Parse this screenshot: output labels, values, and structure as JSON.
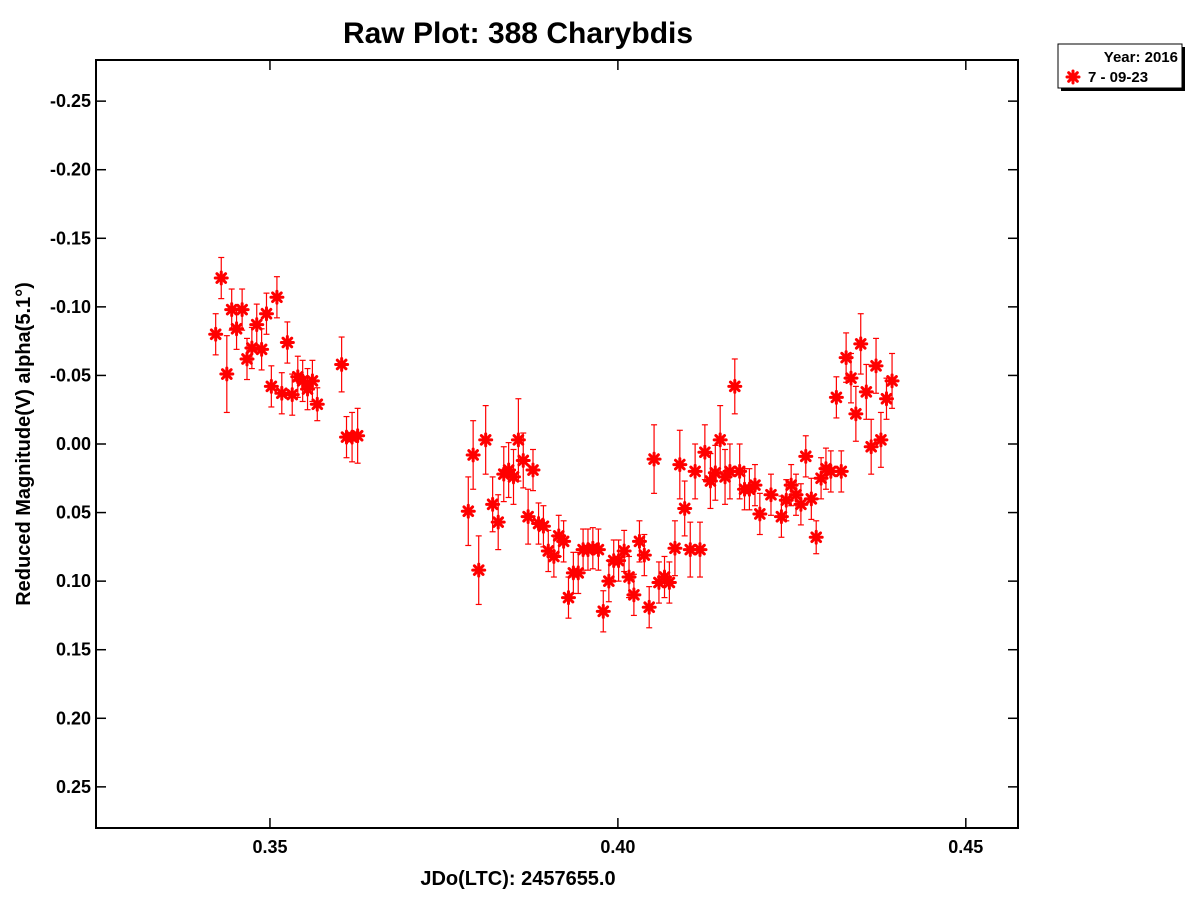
{
  "chart_data": {
    "type": "scatter",
    "title": "Raw Plot: 388 Charybdis",
    "xlabel": "JDo(LTC): 2457655.0",
    "ylabel": "Reduced Magnitude(V) alpha(5.1°)",
    "xlim": [
      0.325,
      0.4575
    ],
    "ylim": [
      -0.28,
      0.28
    ],
    "y_inverted": true,
    "x_ticks": [
      0.35,
      0.4,
      0.45
    ],
    "x_tick_labels": [
      "0.35",
      "0.40",
      "0.45"
    ],
    "y_ticks": [
      -0.25,
      -0.2,
      -0.15,
      -0.1,
      -0.05,
      0.0,
      0.05,
      0.1,
      0.15,
      0.2,
      0.25
    ],
    "y_tick_labels": [
      "-0.25",
      "-0.20",
      "-0.15",
      "-0.10",
      "-0.05",
      "0.00",
      "0.05",
      "0.10",
      "0.15",
      "0.20",
      "0.25"
    ],
    "grid": false,
    "legend": {
      "position": "outside-top-right",
      "header": "Year: 2016",
      "entries": [
        {
          "label": "7 - 09-23",
          "color": "#ff0000",
          "marker": "asterisk"
        }
      ]
    },
    "series": [
      {
        "name": "7 - 09-23",
        "color": "#ff0000",
        "points": [
          {
            "x": 0.3422,
            "y": -0.08,
            "err": 0.015
          },
          {
            "x": 0.343,
            "y": -0.121,
            "err": 0.015
          },
          {
            "x": 0.3438,
            "y": -0.051,
            "err": 0.028
          },
          {
            "x": 0.3445,
            "y": -0.098,
            "err": 0.015
          },
          {
            "x": 0.3452,
            "y": -0.084,
            "err": 0.015
          },
          {
            "x": 0.346,
            "y": -0.098,
            "err": 0.015
          },
          {
            "x": 0.3467,
            "y": -0.062,
            "err": 0.015
          },
          {
            "x": 0.3474,
            "y": -0.07,
            "err": 0.015
          },
          {
            "x": 0.3481,
            "y": -0.087,
            "err": 0.015
          },
          {
            "x": 0.3488,
            "y": -0.069,
            "err": 0.015
          },
          {
            "x": 0.3495,
            "y": -0.095,
            "err": 0.015
          },
          {
            "x": 0.3502,
            "y": -0.042,
            "err": 0.015
          },
          {
            "x": 0.351,
            "y": -0.107,
            "err": 0.015
          },
          {
            "x": 0.3517,
            "y": -0.037,
            "err": 0.015
          },
          {
            "x": 0.3525,
            "y": -0.074,
            "err": 0.015
          },
          {
            "x": 0.3532,
            "y": -0.036,
            "err": 0.015
          },
          {
            "x": 0.354,
            "y": -0.049,
            "err": 0.015
          },
          {
            "x": 0.3547,
            "y": -0.046,
            "err": 0.015
          },
          {
            "x": 0.3554,
            "y": -0.04,
            "err": 0.015
          },
          {
            "x": 0.3561,
            "y": -0.046,
            "err": 0.015
          },
          {
            "x": 0.3568,
            "y": -0.029,
            "err": 0.012
          },
          {
            "x": 0.3603,
            "y": -0.058,
            "err": 0.02
          },
          {
            "x": 0.361,
            "y": -0.005,
            "err": 0.015
          },
          {
            "x": 0.3618,
            "y": -0.005,
            "err": 0.018
          },
          {
            "x": 0.3626,
            "y": -0.006,
            "err": 0.02
          },
          {
            "x": 0.3785,
            "y": 0.049,
            "err": 0.025
          },
          {
            "x": 0.3792,
            "y": 0.008,
            "err": 0.025
          },
          {
            "x": 0.38,
            "y": 0.092,
            "err": 0.025
          },
          {
            "x": 0.381,
            "y": -0.003,
            "err": 0.025
          },
          {
            "x": 0.382,
            "y": 0.044,
            "err": 0.02
          },
          {
            "x": 0.3828,
            "y": 0.057,
            "err": 0.02
          },
          {
            "x": 0.3836,
            "y": 0.022,
            "err": 0.02
          },
          {
            "x": 0.3843,
            "y": 0.019,
            "err": 0.02
          },
          {
            "x": 0.385,
            "y": 0.024,
            "err": 0.02
          },
          {
            "x": 0.3857,
            "y": -0.003,
            "err": 0.03
          },
          {
            "x": 0.3864,
            "y": 0.012,
            "err": 0.02
          },
          {
            "x": 0.3871,
            "y": 0.053,
            "err": 0.02
          },
          {
            "x": 0.3878,
            "y": 0.019,
            "err": 0.015
          },
          {
            "x": 0.3886,
            "y": 0.058,
            "err": 0.015
          },
          {
            "x": 0.3893,
            "y": 0.06,
            "err": 0.015
          },
          {
            "x": 0.39,
            "y": 0.078,
            "err": 0.015
          },
          {
            "x": 0.3908,
            "y": 0.082,
            "err": 0.015
          },
          {
            "x": 0.3915,
            "y": 0.067,
            "err": 0.015
          },
          {
            "x": 0.3922,
            "y": 0.071,
            "err": 0.015
          },
          {
            "x": 0.3929,
            "y": 0.112,
            "err": 0.015
          },
          {
            "x": 0.3936,
            "y": 0.094,
            "err": 0.015
          },
          {
            "x": 0.3943,
            "y": 0.094,
            "err": 0.015
          },
          {
            "x": 0.395,
            "y": 0.077,
            "err": 0.015
          },
          {
            "x": 0.3957,
            "y": 0.077,
            "err": 0.015
          },
          {
            "x": 0.3964,
            "y": 0.076,
            "err": 0.015
          },
          {
            "x": 0.3972,
            "y": 0.077,
            "err": 0.015
          },
          {
            "x": 0.3979,
            "y": 0.122,
            "err": 0.015
          },
          {
            "x": 0.3987,
            "y": 0.1,
            "err": 0.015
          },
          {
            "x": 0.3994,
            "y": 0.085,
            "err": 0.015
          },
          {
            "x": 0.4001,
            "y": 0.085,
            "err": 0.015
          },
          {
            "x": 0.4009,
            "y": 0.078,
            "err": 0.015
          },
          {
            "x": 0.4016,
            "y": 0.097,
            "err": 0.015
          },
          {
            "x": 0.4023,
            "y": 0.11,
            "err": 0.015
          },
          {
            "x": 0.4031,
            "y": 0.071,
            "err": 0.015
          },
          {
            "x": 0.4038,
            "y": 0.081,
            "err": 0.015
          },
          {
            "x": 0.4045,
            "y": 0.119,
            "err": 0.015
          },
          {
            "x": 0.4052,
            "y": 0.011,
            "err": 0.025
          },
          {
            "x": 0.4059,
            "y": 0.101,
            "err": 0.015
          },
          {
            "x": 0.4067,
            "y": 0.097,
            "err": 0.015
          },
          {
            "x": 0.4074,
            "y": 0.101,
            "err": 0.015
          },
          {
            "x": 0.4082,
            "y": 0.076,
            "err": 0.02
          },
          {
            "x": 0.4089,
            "y": 0.015,
            "err": 0.025
          },
          {
            "x": 0.4096,
            "y": 0.047,
            "err": 0.02
          },
          {
            "x": 0.4104,
            "y": 0.077,
            "err": 0.02
          },
          {
            "x": 0.4111,
            "y": 0.02,
            "err": 0.02
          },
          {
            "x": 0.4118,
            "y": 0.077,
            "err": 0.02
          },
          {
            "x": 0.4125,
            "y": 0.006,
            "err": 0.02
          },
          {
            "x": 0.4133,
            "y": 0.027,
            "err": 0.02
          },
          {
            "x": 0.414,
            "y": 0.021,
            "err": 0.02
          },
          {
            "x": 0.4147,
            "y": -0.003,
            "err": 0.025
          },
          {
            "x": 0.4154,
            "y": 0.024,
            "err": 0.02
          },
          {
            "x": 0.4161,
            "y": 0.02,
            "err": 0.02
          },
          {
            "x": 0.4168,
            "y": -0.042,
            "err": 0.02
          },
          {
            "x": 0.4175,
            "y": 0.02,
            "err": 0.02
          },
          {
            "x": 0.4182,
            "y": 0.033,
            "err": 0.015
          },
          {
            "x": 0.4189,
            "y": 0.033,
            "err": 0.015
          },
          {
            "x": 0.4197,
            "y": 0.03,
            "err": 0.015
          },
          {
            "x": 0.4204,
            "y": 0.051,
            "err": 0.015
          },
          {
            "x": 0.422,
            "y": 0.037,
            "err": 0.015
          },
          {
            "x": 0.4235,
            "y": 0.053,
            "err": 0.015
          },
          {
            "x": 0.4242,
            "y": 0.041,
            "err": 0.015
          },
          {
            "x": 0.4249,
            "y": 0.03,
            "err": 0.015
          },
          {
            "x": 0.4256,
            "y": 0.037,
            "err": 0.015
          },
          {
            "x": 0.4263,
            "y": 0.044,
            "err": 0.015
          },
          {
            "x": 0.427,
            "y": 0.009,
            "err": 0.015
          },
          {
            "x": 0.4278,
            "y": 0.04,
            "err": 0.015
          },
          {
            "x": 0.4285,
            "y": 0.068,
            "err": 0.012
          },
          {
            "x": 0.4292,
            "y": 0.025,
            "err": 0.015
          },
          {
            "x": 0.4299,
            "y": 0.018,
            "err": 0.015
          },
          {
            "x": 0.4306,
            "y": 0.02,
            "err": 0.015
          },
          {
            "x": 0.4314,
            "y": -0.034,
            "err": 0.015
          },
          {
            "x": 0.4321,
            "y": 0.02,
            "err": 0.015
          },
          {
            "x": 0.4328,
            "y": -0.063,
            "err": 0.018
          },
          {
            "x": 0.4335,
            "y": -0.048,
            "err": 0.018
          },
          {
            "x": 0.4342,
            "y": -0.022,
            "err": 0.02
          },
          {
            "x": 0.4349,
            "y": -0.073,
            "err": 0.022
          },
          {
            "x": 0.4357,
            "y": -0.038,
            "err": 0.02
          },
          {
            "x": 0.4364,
            "y": 0.002,
            "err": 0.02
          },
          {
            "x": 0.4371,
            "y": -0.057,
            "err": 0.02
          },
          {
            "x": 0.4378,
            "y": -0.003,
            "err": 0.02
          },
          {
            "x": 0.4386,
            "y": -0.033,
            "err": 0.015
          },
          {
            "x": 0.4394,
            "y": -0.046,
            "err": 0.02
          }
        ]
      }
    ]
  }
}
